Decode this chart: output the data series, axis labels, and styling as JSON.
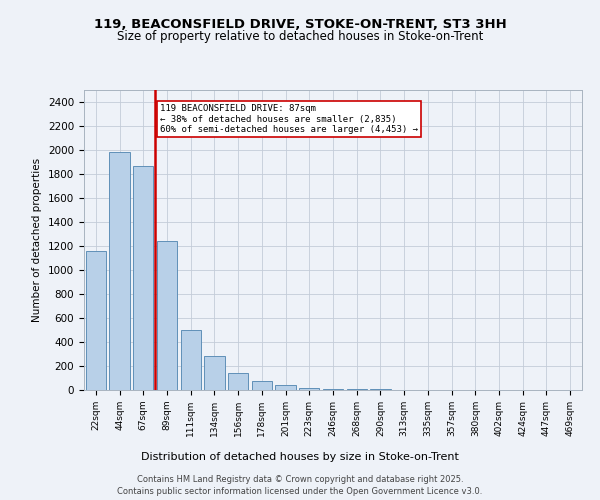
{
  "title1": "119, BEACONSFIELD DRIVE, STOKE-ON-TRENT, ST3 3HH",
  "title2": "Size of property relative to detached houses in Stoke-on-Trent",
  "xlabel": "Distribution of detached houses by size in Stoke-on-Trent",
  "ylabel": "Number of detached properties",
  "footer1": "Contains HM Land Registry data © Crown copyright and database right 2025.",
  "footer2": "Contains public sector information licensed under the Open Government Licence v3.0.",
  "property_label": "119 BEACONSFIELD DRIVE: 87sqm",
  "annotation_line1": "← 38% of detached houses are smaller (2,835)",
  "annotation_line2": "60% of semi-detached houses are larger (4,453) →",
  "bar_color": "#b8d0e8",
  "bar_edge_color": "#6090b8",
  "redline_color": "#cc0000",
  "categories": [
    "22sqm",
    "44sqm",
    "67sqm",
    "89sqm",
    "111sqm",
    "134sqm",
    "156sqm",
    "178sqm",
    "201sqm",
    "223sqm",
    "246sqm",
    "268sqm",
    "290sqm",
    "313sqm",
    "335sqm",
    "357sqm",
    "380sqm",
    "402sqm",
    "424sqm",
    "447sqm",
    "469sqm"
  ],
  "values": [
    1160,
    1980,
    1870,
    1240,
    500,
    280,
    140,
    75,
    40,
    20,
    12,
    8,
    5,
    3,
    2,
    1,
    1,
    0,
    0,
    0,
    0
  ],
  "ylim": [
    0,
    2500
  ],
  "yticks": [
    0,
    200,
    400,
    600,
    800,
    1000,
    1200,
    1400,
    1600,
    1800,
    2000,
    2200,
    2400
  ],
  "redline_x": 2.5,
  "bg_color": "#eef2f8",
  "fig_bg_color": "#eef2f8"
}
